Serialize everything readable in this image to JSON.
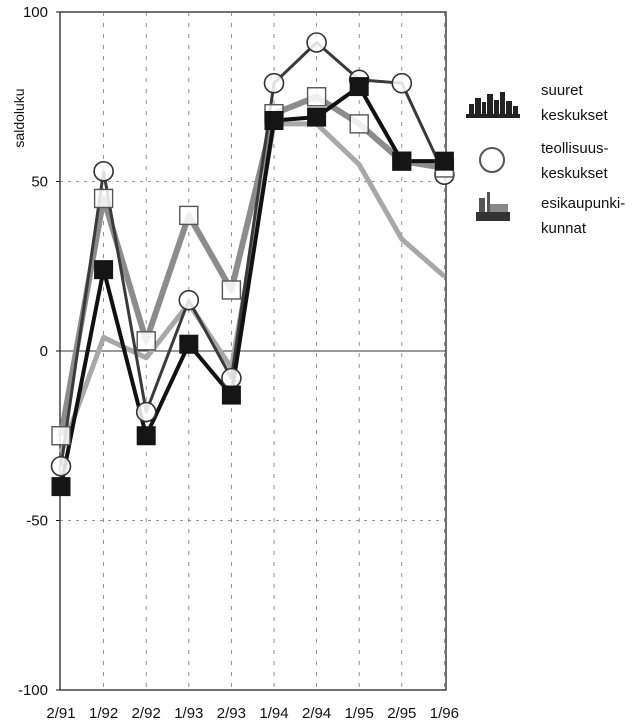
{
  "chart_data": {
    "type": "line",
    "ylabel": "saldoluku",
    "ylim": [
      -100,
      100
    ],
    "yticks": [
      100,
      50,
      0,
      -50,
      -100
    ],
    "categories": [
      "2/91",
      "1/92",
      "2/92",
      "1/93",
      "2/93",
      "1/94",
      "2/94",
      "1/95",
      "2/95",
      "1/96"
    ],
    "grid": true,
    "legend_position": "right",
    "series": [
      {
        "name": "suuret keskukset",
        "marker": "circle",
        "color": "#3a3a3a",
        "values": [
          -34,
          53,
          -18,
          15,
          -8,
          79,
          91,
          80,
          79,
          52
        ]
      },
      {
        "name": "teollisuus-keskukset",
        "marker": "square-open",
        "color": "#8c8c8c",
        "values": [
          -25,
          45,
          3,
          40,
          18,
          70,
          75,
          67,
          56,
          54
        ]
      },
      {
        "name": "esikaupunki-kunnat",
        "marker": "square-filled",
        "color": "#111111",
        "values": [
          -40,
          24,
          -25,
          2,
          -13,
          68,
          69,
          78,
          56,
          56
        ]
      }
    ],
    "extra_lines": [
      {
        "marker": "circle-open",
        "color": "#a8a8a8",
        "values": [
          -30,
          4,
          -2,
          14,
          -5,
          67,
          67,
          55,
          33,
          22
        ]
      }
    ],
    "legend": [
      {
        "line1": "suuret",
        "line2": "keskukset",
        "icon": "city-skyline-icon"
      },
      {
        "line1": "teollisuus-",
        "line2": "keskukset",
        "icon": "circle-icon"
      },
      {
        "line1": "esikaupunki-",
        "line2": "kunnat",
        "icon": "factory-icon"
      }
    ]
  }
}
